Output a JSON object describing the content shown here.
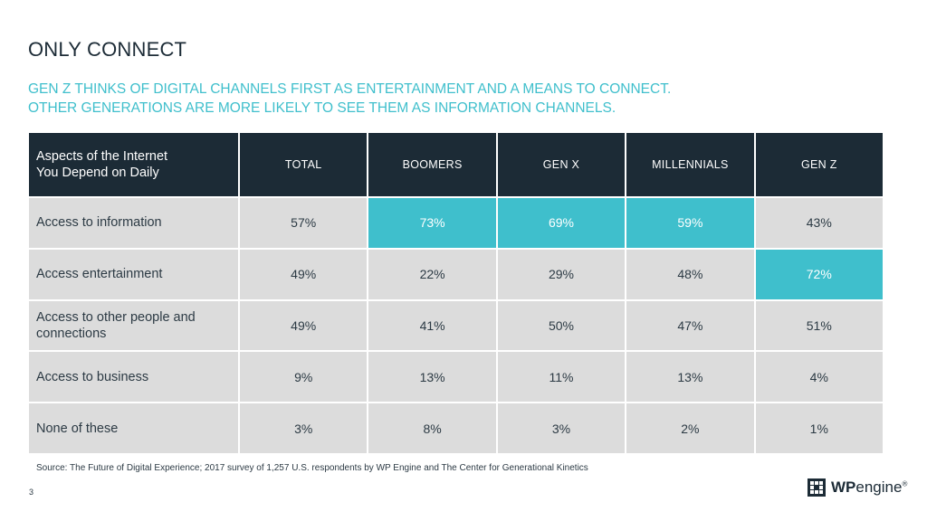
{
  "title": "ONLY CONNECT",
  "subtitle": {
    "line1": "GEN Z THINKS OF DIGITAL CHANNELS FIRST AS ENTERTAINMENT AND A MEANS TO CONNECT.",
    "line2": "OTHER GENERATIONS ARE MORE LIKELY TO SEE THEM AS INFORMATION CHANNELS."
  },
  "table": {
    "header": {
      "label_line1": "Aspects of the Internet",
      "label_line2": "You Depend on Daily",
      "columns": [
        "TOTAL",
        "BOOMERS",
        "GEN X",
        "MILLENNIALS",
        "GEN Z"
      ]
    },
    "highlight_color": "#3fbfcc",
    "rows": [
      {
        "label_line1": "Access to information",
        "label_line2": "",
        "values": [
          "57%",
          "73%",
          "69%",
          "59%",
          "43%"
        ],
        "highlighted": [
          false,
          true,
          true,
          true,
          false
        ]
      },
      {
        "label_line1": "Access entertainment",
        "label_line2": "",
        "values": [
          "49%",
          "22%",
          "29%",
          "48%",
          "72%"
        ],
        "highlighted": [
          false,
          false,
          false,
          false,
          true
        ]
      },
      {
        "label_line1": "Access to other people and",
        "label_line2": "connections",
        "values": [
          "49%",
          "41%",
          "50%",
          "47%",
          "51%"
        ],
        "highlighted": [
          false,
          false,
          false,
          false,
          false
        ]
      },
      {
        "label_line1": "Access to business",
        "label_line2": "",
        "values": [
          "9%",
          "13%",
          "11%",
          "13%",
          "4%"
        ],
        "highlighted": [
          false,
          false,
          false,
          false,
          false
        ]
      },
      {
        "label_line1": "None of these",
        "label_line2": "",
        "values": [
          "3%",
          "8%",
          "3%",
          "2%",
          "1%"
        ],
        "highlighted": [
          false,
          false,
          false,
          false,
          false
        ]
      }
    ]
  },
  "source": "Source: The Future of Digital Experience; 2017 survey of 1,257 U.S. respondents by WP Engine and The Center for Generational Kinetics",
  "page_number": "3",
  "logo": {
    "wp": "WP",
    "engine": "engine",
    "mark": "®",
    "icon": "wpengine-logo-icon"
  }
}
